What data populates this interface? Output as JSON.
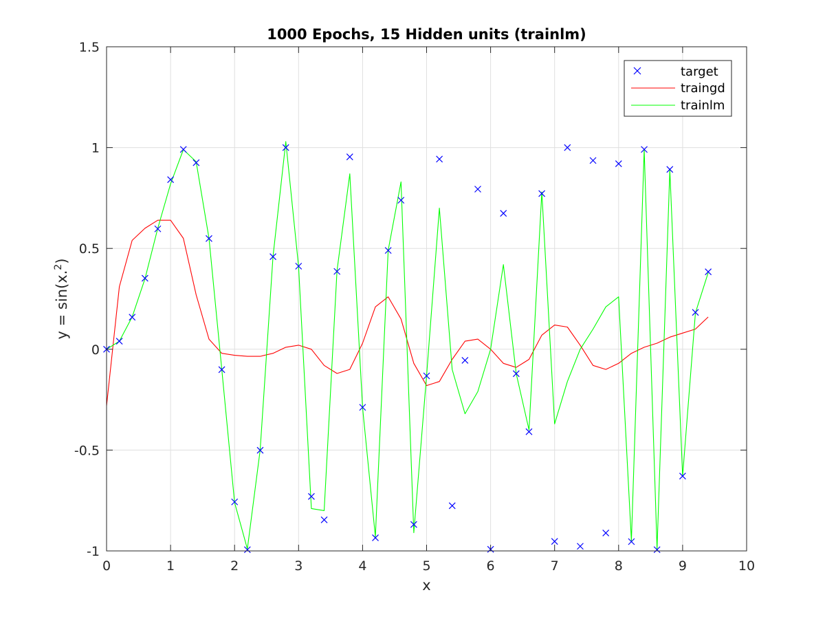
{
  "chart_data": {
    "type": "line",
    "title": "1000 Epochs, 15 Hidden units (trainlm)",
    "xlabel": "x",
    "ylabel": "y = sin(x.²)",
    "ylabel_parts": {
      "base": "y = sin(x.",
      "sup": "2",
      "tail": ")"
    },
    "xlim": [
      0,
      10
    ],
    "ylim": [
      -1,
      1.5
    ],
    "xticks": [
      0,
      1,
      2,
      3,
      4,
      5,
      6,
      7,
      8,
      9,
      10
    ],
    "xtick_labels": [
      "0",
      "1",
      "2",
      "3",
      "4",
      "5",
      "6",
      "7",
      "8",
      "9",
      "10"
    ],
    "yticks": [
      -1,
      -0.5,
      0,
      0.5,
      1,
      1.5
    ],
    "ytick_labels": [
      "-1",
      "-0.5",
      "0",
      "0.5",
      "1",
      "1.5"
    ],
    "grid": true,
    "legend_position": "top-right",
    "x": [
      0,
      0.2,
      0.4,
      0.6,
      0.8,
      1.0,
      1.2,
      1.4,
      1.6,
      1.8,
      2.0,
      2.2,
      2.4,
      2.6,
      2.8,
      3.0,
      3.2,
      3.4,
      3.6,
      3.8,
      4.0,
      4.2,
      4.4,
      4.6,
      4.8,
      5.0,
      5.2,
      5.4,
      5.6,
      5.8,
      6.0,
      6.2,
      6.4,
      6.6,
      6.8,
      7.0,
      7.2,
      7.4,
      7.6,
      7.8,
      8.0,
      8.2,
      8.4,
      8.6,
      8.8,
      9.0,
      9.2,
      9.4
    ],
    "series": [
      {
        "name": "target",
        "style": "marker",
        "marker": "x",
        "color": "#0000ff",
        "values": [
          0,
          0.04,
          0.159,
          0.352,
          0.597,
          0.841,
          0.991,
          0.925,
          0.549,
          -0.101,
          -0.757,
          -0.994,
          -0.501,
          0.459,
          1.0,
          0.412,
          -0.73,
          -0.846,
          0.386,
          0.954,
          -0.288,
          -0.935,
          0.49,
          0.739,
          -0.869,
          -0.132,
          0.943,
          -0.776,
          -0.055,
          0.794,
          -0.992,
          0.674,
          -0.121,
          -0.409,
          0.772,
          -0.953,
          1.0,
          -0.977,
          0.936,
          -0.911,
          0.92,
          -0.954,
          0.991,
          -0.994,
          0.892,
          -0.629,
          0.183,
          0.384
        ]
      },
      {
        "name": "traingd",
        "style": "line",
        "color": "#ff0000",
        "values": [
          -0.28,
          0.31,
          0.54,
          0.6,
          0.64,
          0.64,
          0.55,
          0.27,
          0.05,
          -0.02,
          -0.03,
          -0.035,
          -0.035,
          -0.02,
          0.01,
          0.02,
          0.0,
          -0.08,
          -0.12,
          -0.1,
          0.03,
          0.21,
          0.26,
          0.15,
          -0.07,
          -0.18,
          -0.16,
          -0.05,
          0.04,
          0.05,
          0.0,
          -0.07,
          -0.09,
          -0.05,
          0.07,
          0.12,
          0.11,
          0.02,
          -0.08,
          -0.1,
          -0.07,
          -0.02,
          0.01,
          0.03,
          0.06,
          0.08,
          0.1,
          0.16
        ]
      },
      {
        "name": "trainlm",
        "style": "line",
        "color": "#00ff00",
        "values": [
          0.0,
          0.04,
          0.16,
          0.35,
          0.6,
          0.82,
          0.99,
          0.93,
          0.55,
          -0.1,
          -0.76,
          -0.99,
          -0.5,
          0.46,
          1.03,
          0.41,
          -0.79,
          -0.8,
          0.39,
          0.87,
          -0.29,
          -0.93,
          0.49,
          0.83,
          -0.91,
          -0.13,
          0.7,
          -0.1,
          -0.32,
          -0.21,
          0.0,
          0.42,
          -0.12,
          -0.4,
          0.78,
          -0.37,
          -0.16,
          0.0,
          0.1,
          0.21,
          0.26,
          -0.95,
          0.99,
          -0.99,
          0.89,
          -0.63,
          0.18,
          0.38
        ]
      }
    ]
  }
}
